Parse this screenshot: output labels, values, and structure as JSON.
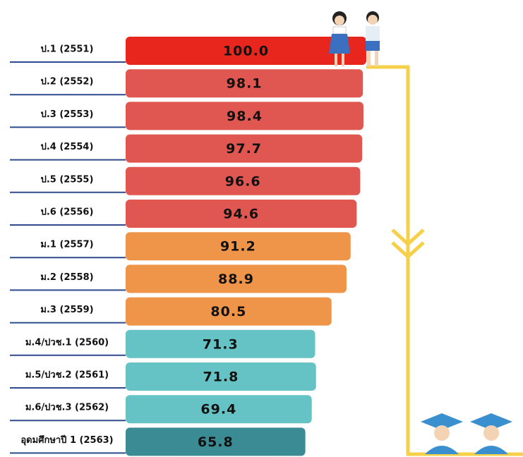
{
  "chart_data": {
    "type": "bar",
    "orientation": "horizontal",
    "categories": [
      "ป.1 (2551)",
      "ป.2 (2552)",
      "ป.3 (2553)",
      "ป.4 (2554)",
      "ป.5 (2555)",
      "ป.6 (2556)",
      "ม.1 (2557)",
      "ม.2 (2558)",
      "ม.3 (2559)",
      "ม.4/ปวช.1 (2560)",
      "ม.5/ปวช.2 (2561)",
      "ม.6/ปวช.3 (2562)",
      "อุดมศึกษาปี 1 (2563)"
    ],
    "values": [
      100.0,
      98.1,
      98.4,
      97.7,
      96.6,
      94.6,
      91.2,
      88.9,
      80.5,
      71.3,
      71.8,
      69.4,
      65.8
    ],
    "value_labels": [
      "100.0",
      "98.1",
      "98.4",
      "97.7",
      "96.6",
      "94.6",
      "91.2",
      "88.9",
      "80.5",
      "71.3",
      "71.8",
      "69.4",
      "65.8"
    ],
    "colors": [
      "#e8261d",
      "#df5750",
      "#df5750",
      "#df5750",
      "#df5750",
      "#df5750",
      "#ef9549",
      "#ef9549",
      "#ef9549",
      "#66c3c5",
      "#66c3c5",
      "#66c3c5",
      "#3b8b94"
    ],
    "xlim": [
      -35,
      100
    ]
  }
}
